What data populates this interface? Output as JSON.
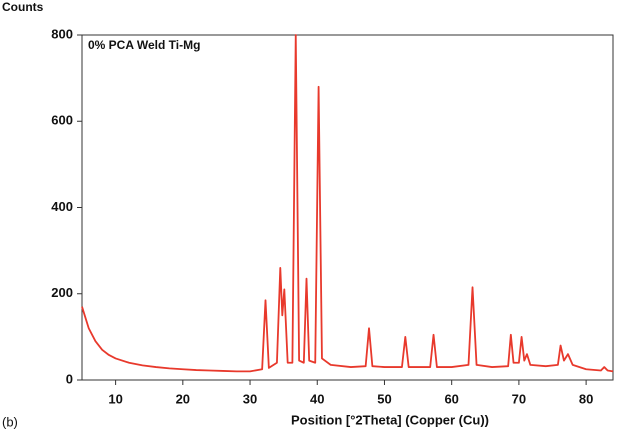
{
  "chart_data": {
    "type": "line",
    "title": "0% PCA Weld Ti-Mg",
    "y_label": "Counts",
    "x_label": "Position [°2Theta] (Copper (Cu))",
    "panel_label": "(b)",
    "x": [
      5,
      6,
      7,
      8,
      9,
      10,
      12,
      14,
      16,
      18,
      20,
      22,
      24,
      26,
      28,
      30,
      31.8,
      32.3,
      32.8,
      34.0,
      34.5,
      34.8,
      35.1,
      35.6,
      36.3,
      36.8,
      37.3,
      38.0,
      38.4,
      38.8,
      39.7,
      40.2,
      40.7,
      42,
      45,
      47.2,
      47.7,
      48.2,
      50,
      52.6,
      53.1,
      53.6,
      56.8,
      57.3,
      57.8,
      60,
      62.5,
      63.1,
      63.7,
      66,
      68.4,
      68.8,
      69.2,
      70.0,
      70.4,
      70.8,
      71.2,
      71.7,
      74,
      75.8,
      76.2,
      76.7,
      77.3,
      78,
      80,
      82.2,
      82.7,
      83.2,
      84
    ],
    "series": [
      {
        "name": "0% PCA Weld Ti-Mg",
        "color": "#e8392c",
        "values": [
          170,
          120,
          90,
          70,
          58,
          50,
          40,
          34,
          30,
          27,
          25,
          23,
          22,
          21,
          20,
          20,
          25,
          185,
          28,
          40,
          260,
          150,
          210,
          40,
          40,
          800,
          45,
          40,
          235,
          45,
          40,
          680,
          50,
          35,
          30,
          32,
          120,
          32,
          30,
          30,
          100,
          30,
          30,
          105,
          30,
          30,
          35,
          215,
          35,
          30,
          32,
          105,
          40,
          40,
          100,
          45,
          60,
          35,
          32,
          35,
          80,
          45,
          60,
          35,
          25,
          22,
          30,
          22,
          20
        ]
      }
    ],
    "xlim": [
      5,
      84
    ],
    "ylim": [
      0,
      800
    ],
    "xticks": [
      10,
      20,
      30,
      40,
      50,
      60,
      70,
      80
    ],
    "yticks": [
      0,
      200,
      400,
      600,
      800
    ]
  }
}
